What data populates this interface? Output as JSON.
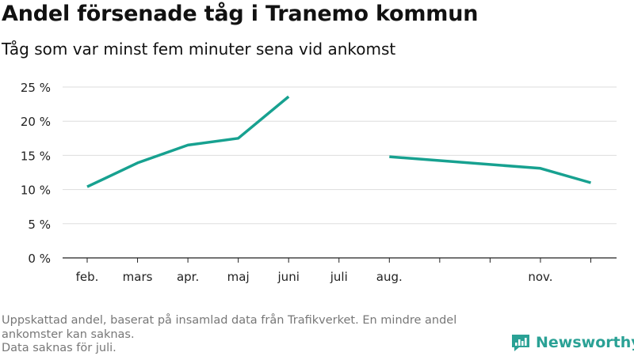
{
  "title": "Andel försenade tåg i Tranemo kommun",
  "subtitle": "Tåg som var minst fem minuter sena vid ankomst",
  "footer": {
    "note_line1": "Uppskattad andel, baserat på insamlad data från Trafikverket. En mindre andel ankomster kan saknas.",
    "note_line2": "Data saknas för juli."
  },
  "brand": {
    "name": "Newsworthy",
    "icon": "newsworthy-logo-icon",
    "color": "#2aa195"
  },
  "colors": {
    "line": "#17a190",
    "grid": "#dddddd",
    "axis": "#222222"
  },
  "chart_data": {
    "type": "line",
    "title": "Andel försenade tåg i Tranemo kommun",
    "xlabel": "",
    "ylabel": "",
    "ylim": [
      0,
      25
    ],
    "yticks": [
      0,
      5,
      10,
      15,
      20,
      25
    ],
    "ytick_labels": [
      "0 %",
      "5 %",
      "10 %",
      "15 %",
      "20 %",
      "25 %"
    ],
    "x_ticks": [
      1,
      2,
      3,
      4,
      5,
      6,
      7,
      8,
      9,
      10,
      11
    ],
    "x_labels": [
      {
        "x": 0,
        "label": "feb."
      },
      {
        "x": 1,
        "label": "mars"
      },
      {
        "x": 2,
        "label": "apr."
      },
      {
        "x": 3,
        "label": "maj"
      },
      {
        "x": 4,
        "label": "juni"
      },
      {
        "x": 5,
        "label": "juli"
      },
      {
        "x": 6,
        "label": "aug."
      },
      {
        "x": 9,
        "label": "nov."
      }
    ],
    "series": [
      {
        "name": "Andel försenade tåg",
        "segments": [
          [
            {
              "x": 0,
              "y": 10.4
            },
            {
              "x": 1,
              "y": 13.9
            },
            {
              "x": 2,
              "y": 16.5
            },
            {
              "x": 3,
              "y": 17.5
            },
            {
              "x": 4,
              "y": 23.6
            }
          ],
          [
            {
              "x": 6,
              "y": 14.8
            },
            {
              "x": 9,
              "y": 13.1
            },
            {
              "x": 10,
              "y": 11.0
            }
          ]
        ]
      }
    ]
  }
}
